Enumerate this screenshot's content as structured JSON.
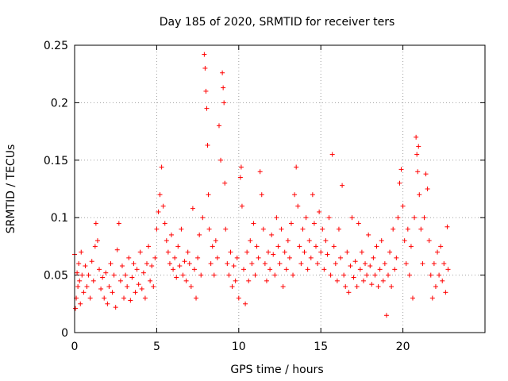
{
  "chart_data": {
    "type": "scatter",
    "title": "Day 185 of 2020, SRMTID for receiver ters",
    "xlabel": "GPS time / hours",
    "ylabel": "SRMTID / TECUs",
    "xlim": [
      0,
      25
    ],
    "ylim": [
      0,
      0.25
    ],
    "xticks": [
      0,
      5,
      10,
      15,
      20
    ],
    "yticks": [
      0,
      0.05,
      0.1,
      0.15,
      0.2,
      0.25
    ],
    "xtick_labels": [
      "0",
      "5",
      "10",
      "15",
      "20"
    ],
    "ytick_labels": [
      "0",
      "0.05",
      "0.1",
      "0.15",
      "0.2",
      "0.25"
    ],
    "grid": true,
    "marker": "+",
    "color": "#ff0000",
    "series": [
      {
        "name": "SRMTID",
        "points": [
          [
            0.0,
            0.068
          ],
          [
            0.05,
            0.021
          ],
          [
            0.1,
            0.03
          ],
          [
            0.15,
            0.052
          ],
          [
            0.2,
            0.04
          ],
          [
            0.25,
            0.06
          ],
          [
            0.3,
            0.045
          ],
          [
            0.35,
            0.025
          ],
          [
            0.4,
            0.07
          ],
          [
            0.45,
            0.05
          ],
          [
            0.55,
            0.035
          ],
          [
            0.65,
            0.058
          ],
          [
            0.75,
            0.04
          ],
          [
            0.85,
            0.05
          ],
          [
            0.95,
            0.03
          ],
          [
            1.05,
            0.062
          ],
          [
            1.15,
            0.045
          ],
          [
            1.25,
            0.075
          ],
          [
            1.3,
            0.095
          ],
          [
            1.4,
            0.08
          ],
          [
            1.5,
            0.055
          ],
          [
            1.6,
            0.038
          ],
          [
            1.7,
            0.048
          ],
          [
            1.8,
            0.03
          ],
          [
            1.9,
            0.052
          ],
          [
            2.0,
            0.025
          ],
          [
            2.1,
            0.04
          ],
          [
            2.2,
            0.06
          ],
          [
            2.3,
            0.035
          ],
          [
            2.4,
            0.05
          ],
          [
            2.5,
            0.022
          ],
          [
            2.6,
            0.072
          ],
          [
            2.7,
            0.095
          ],
          [
            2.8,
            0.045
          ],
          [
            2.9,
            0.058
          ],
          [
            3.0,
            0.03
          ],
          [
            3.1,
            0.05
          ],
          [
            3.2,
            0.04
          ],
          [
            3.3,
            0.065
          ],
          [
            3.4,
            0.028
          ],
          [
            3.5,
            0.048
          ],
          [
            3.6,
            0.06
          ],
          [
            3.7,
            0.035
          ],
          [
            3.8,
            0.055
          ],
          [
            3.9,
            0.042
          ],
          [
            4.0,
            0.07
          ],
          [
            4.1,
            0.038
          ],
          [
            4.2,
            0.052
          ],
          [
            4.3,
            0.03
          ],
          [
            4.4,
            0.06
          ],
          [
            4.5,
            0.075
          ],
          [
            4.6,
            0.045
          ],
          [
            4.7,
            0.058
          ],
          [
            4.8,
            0.04
          ],
          [
            4.9,
            0.065
          ],
          [
            5.0,
            0.09
          ],
          [
            5.1,
            0.105
          ],
          [
            5.2,
            0.12
          ],
          [
            5.3,
            0.144
          ],
          [
            5.4,
            0.11
          ],
          [
            5.5,
            0.095
          ],
          [
            5.6,
            0.08
          ],
          [
            5.7,
            0.07
          ],
          [
            5.8,
            0.06
          ],
          [
            5.9,
            0.085
          ],
          [
            6.0,
            0.055
          ],
          [
            6.1,
            0.065
          ],
          [
            6.2,
            0.048
          ],
          [
            6.3,
            0.075
          ],
          [
            6.4,
            0.058
          ],
          [
            6.5,
            0.09
          ],
          [
            6.6,
            0.05
          ],
          [
            6.7,
            0.062
          ],
          [
            6.8,
            0.045
          ],
          [
            6.9,
            0.07
          ],
          [
            7.0,
            0.06
          ],
          [
            7.1,
            0.04
          ],
          [
            7.2,
            0.108
          ],
          [
            7.3,
            0.055
          ],
          [
            7.4,
            0.03
          ],
          [
            7.5,
            0.065
          ],
          [
            7.6,
            0.085
          ],
          [
            7.7,
            0.05
          ],
          [
            7.8,
            0.1
          ],
          [
            7.9,
            0.242
          ],
          [
            7.95,
            0.23
          ],
          [
            8.0,
            0.21
          ],
          [
            8.05,
            0.195
          ],
          [
            8.1,
            0.163
          ],
          [
            8.15,
            0.12
          ],
          [
            8.2,
            0.09
          ],
          [
            8.3,
            0.06
          ],
          [
            8.4,
            0.075
          ],
          [
            8.5,
            0.05
          ],
          [
            8.6,
            0.08
          ],
          [
            8.7,
            0.065
          ],
          [
            8.8,
            0.18
          ],
          [
            8.9,
            0.15
          ],
          [
            9.0,
            0.226
          ],
          [
            9.05,
            0.213
          ],
          [
            9.1,
            0.2
          ],
          [
            9.15,
            0.13
          ],
          [
            9.2,
            0.09
          ],
          [
            9.3,
            0.06
          ],
          [
            9.4,
            0.05
          ],
          [
            9.5,
            0.07
          ],
          [
            9.6,
            0.04
          ],
          [
            9.7,
            0.058
          ],
          [
            9.8,
            0.045
          ],
          [
            9.9,
            0.065
          ],
          [
            10.0,
            0.03
          ],
          [
            10.1,
            0.135
          ],
          [
            10.15,
            0.144
          ],
          [
            10.2,
            0.11
          ],
          [
            10.3,
            0.055
          ],
          [
            10.4,
            0.025
          ],
          [
            10.5,
            0.07
          ],
          [
            10.6,
            0.045
          ],
          [
            10.7,
            0.08
          ],
          [
            10.8,
            0.06
          ],
          [
            10.9,
            0.095
          ],
          [
            11.0,
            0.05
          ],
          [
            11.1,
            0.075
          ],
          [
            11.2,
            0.065
          ],
          [
            11.3,
            0.14
          ],
          [
            11.4,
            0.12
          ],
          [
            11.5,
            0.09
          ],
          [
            11.6,
            0.06
          ],
          [
            11.7,
            0.045
          ],
          [
            11.8,
            0.07
          ],
          [
            11.9,
            0.055
          ],
          [
            12.0,
            0.085
          ],
          [
            12.1,
            0.068
          ],
          [
            12.2,
            0.05
          ],
          [
            12.3,
            0.1
          ],
          [
            12.4,
            0.075
          ],
          [
            12.5,
            0.06
          ],
          [
            12.6,
            0.09
          ],
          [
            12.7,
            0.04
          ],
          [
            12.8,
            0.07
          ],
          [
            12.9,
            0.055
          ],
          [
            13.0,
            0.08
          ],
          [
            13.1,
            0.065
          ],
          [
            13.2,
            0.095
          ],
          [
            13.3,
            0.05
          ],
          [
            13.4,
            0.12
          ],
          [
            13.5,
            0.144
          ],
          [
            13.6,
            0.11
          ],
          [
            13.7,
            0.075
          ],
          [
            13.8,
            0.06
          ],
          [
            13.9,
            0.09
          ],
          [
            14.0,
            0.07
          ],
          [
            14.1,
            0.1
          ],
          [
            14.2,
            0.055
          ],
          [
            14.3,
            0.08
          ],
          [
            14.4,
            0.065
          ],
          [
            14.5,
            0.12
          ],
          [
            14.6,
            0.095
          ],
          [
            14.7,
            0.075
          ],
          [
            14.8,
            0.06
          ],
          [
            14.9,
            0.105
          ],
          [
            15.0,
            0.07
          ],
          [
            15.1,
            0.09
          ],
          [
            15.2,
            0.055
          ],
          [
            15.3,
            0.08
          ],
          [
            15.4,
            0.068
          ],
          [
            15.5,
            0.1
          ],
          [
            15.6,
            0.05
          ],
          [
            15.7,
            0.155
          ],
          [
            15.8,
            0.075
          ],
          [
            15.9,
            0.06
          ],
          [
            16.0,
            0.045
          ],
          [
            16.1,
            0.09
          ],
          [
            16.2,
            0.065
          ],
          [
            16.3,
            0.128
          ],
          [
            16.4,
            0.05
          ],
          [
            16.5,
            0.04
          ],
          [
            16.6,
            0.07
          ],
          [
            16.7,
            0.035
          ],
          [
            16.8,
            0.058
          ],
          [
            16.9,
            0.1
          ],
          [
            17.0,
            0.048
          ],
          [
            17.1,
            0.062
          ],
          [
            17.2,
            0.04
          ],
          [
            17.3,
            0.095
          ],
          [
            17.4,
            0.055
          ],
          [
            17.5,
            0.07
          ],
          [
            17.6,
            0.045
          ],
          [
            17.7,
            0.06
          ],
          [
            17.8,
            0.05
          ],
          [
            17.9,
            0.085
          ],
          [
            18.0,
            0.058
          ],
          [
            18.1,
            0.042
          ],
          [
            18.2,
            0.065
          ],
          [
            18.3,
            0.05
          ],
          [
            18.4,
            0.075
          ],
          [
            18.5,
            0.04
          ],
          [
            18.6,
            0.055
          ],
          [
            18.7,
            0.08
          ],
          [
            18.8,
            0.045
          ],
          [
            18.9,
            0.06
          ],
          [
            19.0,
            0.015
          ],
          [
            19.1,
            0.05
          ],
          [
            19.2,
            0.07
          ],
          [
            19.3,
            0.04
          ],
          [
            19.4,
            0.09
          ],
          [
            19.5,
            0.055
          ],
          [
            19.6,
            0.065
          ],
          [
            19.7,
            0.1
          ],
          [
            19.8,
            0.13
          ],
          [
            19.9,
            0.142
          ],
          [
            20.0,
            0.11
          ],
          [
            20.1,
            0.08
          ],
          [
            20.2,
            0.06
          ],
          [
            20.3,
            0.09
          ],
          [
            20.4,
            0.05
          ],
          [
            20.5,
            0.075
          ],
          [
            20.6,
            0.03
          ],
          [
            20.7,
            0.1
          ],
          [
            20.8,
            0.17
          ],
          [
            20.85,
            0.155
          ],
          [
            20.9,
            0.14
          ],
          [
            20.95,
            0.162
          ],
          [
            21.0,
            0.12
          ],
          [
            21.1,
            0.09
          ],
          [
            21.2,
            0.06
          ],
          [
            21.3,
            0.1
          ],
          [
            21.4,
            0.138
          ],
          [
            21.5,
            0.125
          ],
          [
            21.6,
            0.08
          ],
          [
            21.7,
            0.05
          ],
          [
            21.8,
            0.03
          ],
          [
            21.9,
            0.06
          ],
          [
            22.0,
            0.04
          ],
          [
            22.1,
            0.07
          ],
          [
            22.2,
            0.05
          ],
          [
            22.3,
            0.075
          ],
          [
            22.4,
            0.045
          ],
          [
            22.5,
            0.06
          ],
          [
            22.6,
            0.035
          ],
          [
            22.7,
            0.092
          ],
          [
            22.75,
            0.055
          ]
        ]
      }
    ]
  }
}
